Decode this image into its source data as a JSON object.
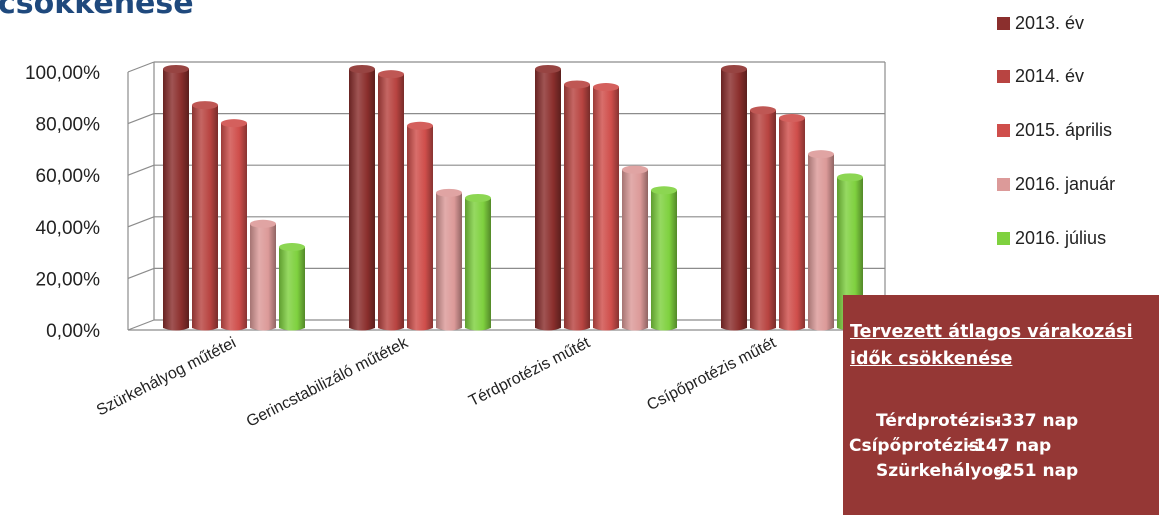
{
  "page": {
    "title": "csökkenése"
  },
  "colors": {
    "s2013": "#8b2f2d",
    "s2014": "#b84441",
    "s2015": "#cf4e4b",
    "s2016jan": "#dc9a99",
    "s2016jul": "#7fd13f",
    "info_bg": "#953735",
    "title": "#1f497d"
  },
  "chart_data": {
    "type": "bar",
    "categories": [
      "Szürkehályog műtétei",
      "Gerincstabilizáló műtétek",
      "Térdprotézis műtét",
      "Csípőprotézis műtét"
    ],
    "series": [
      {
        "name": "2013. év",
        "values": [
          100,
          100,
          100,
          100
        ]
      },
      {
        "name": "2014. év",
        "values": [
          86,
          98,
          94,
          84
        ]
      },
      {
        "name": "2015. április",
        "values": [
          79,
          78,
          93,
          81
        ]
      },
      {
        "name": "2016. január",
        "values": [
          40,
          52,
          61,
          67
        ]
      },
      {
        "name": "2016. július",
        "values": [
          31,
          50,
          53,
          58
        ]
      }
    ],
    "ytick_labels": [
      "0,00%",
      "20,00%",
      "40,00%",
      "60,00%",
      "80,00%",
      "100,00%"
    ],
    "ylim": [
      0,
      100
    ],
    "grid": true,
    "legend": "right"
  },
  "info": {
    "title": "Tervezett átlagos várakozási idők csökkenése",
    "rows": [
      {
        "label": "Térdprotézis:",
        "value": "-337 nap"
      },
      {
        "label": "Csípőprotézis:",
        "value": "-147 nap"
      },
      {
        "label": "Szürkehályog:",
        "value": "-251 nap"
      }
    ]
  }
}
